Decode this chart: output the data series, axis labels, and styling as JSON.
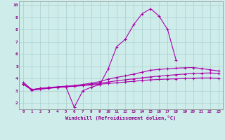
{
  "xlabel": "Windchill (Refroidissement éolien,°C)",
  "background_color": "#ceecea",
  "grid_color": "#aacfcc",
  "line_color": "#aa00aa",
  "x_hours": [
    0,
    1,
    2,
    3,
    4,
    5,
    6,
    7,
    8,
    9,
    10,
    11,
    12,
    13,
    14,
    15,
    16,
    17,
    18,
    19,
    20,
    21,
    22,
    23
  ],
  "line1": [
    3.7,
    3.1,
    3.2,
    3.25,
    3.3,
    3.35,
    1.65,
    3.0,
    3.3,
    3.5,
    4.8,
    6.6,
    7.2,
    8.4,
    9.3,
    9.7,
    9.1,
    8.0,
    5.5,
    null,
    null,
    null,
    null,
    null
  ],
  "line2": [
    3.55,
    3.1,
    3.2,
    3.27,
    3.33,
    3.38,
    3.43,
    3.52,
    3.63,
    3.75,
    3.95,
    4.1,
    4.22,
    4.37,
    4.52,
    4.68,
    4.75,
    4.8,
    4.85,
    4.88,
    4.9,
    4.82,
    4.72,
    4.62
  ],
  "line3": [
    3.55,
    3.08,
    3.18,
    3.25,
    3.3,
    3.35,
    3.4,
    3.47,
    3.54,
    3.62,
    3.72,
    3.82,
    3.9,
    3.98,
    4.06,
    4.14,
    4.2,
    4.26,
    4.32,
    4.37,
    4.42,
    4.44,
    4.46,
    4.42
  ],
  "line4": [
    3.55,
    3.05,
    3.13,
    3.2,
    3.27,
    3.32,
    3.37,
    3.42,
    3.48,
    3.54,
    3.6,
    3.66,
    3.72,
    3.78,
    3.84,
    3.9,
    3.93,
    3.96,
    3.98,
    4.01,
    4.03,
    4.05,
    4.05,
    4.02
  ],
  "ylim": [
    1.5,
    10.3
  ],
  "xlim": [
    -0.5,
    23.5
  ],
  "yticks": [
    2,
    3,
    4,
    5,
    6,
    7,
    8,
    9,
    10
  ],
  "xticks": [
    0,
    1,
    2,
    3,
    4,
    5,
    6,
    7,
    8,
    9,
    10,
    11,
    12,
    13,
    14,
    15,
    16,
    17,
    18,
    19,
    20,
    21,
    22,
    23
  ]
}
